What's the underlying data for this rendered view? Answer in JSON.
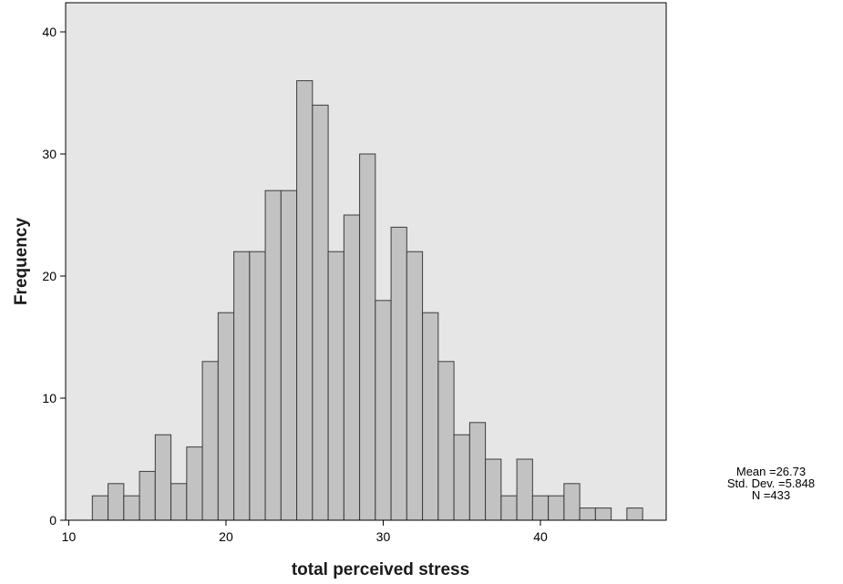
{
  "chart_data": {
    "type": "bar",
    "title": "",
    "xlabel": "total perceived stress",
    "ylabel": "Frequency",
    "xlim": [
      9.8,
      48
    ],
    "ylim": [
      0,
      40
    ],
    "grid": false,
    "x_ticks": [
      "10",
      "20",
      "30",
      "40"
    ],
    "y_ticks": [
      "0",
      "10",
      "20",
      "30",
      "40"
    ],
    "bin_width": 1,
    "bins": [
      {
        "x": 12,
        "value": 2
      },
      {
        "x": 13,
        "value": 3
      },
      {
        "x": 14,
        "value": 2
      },
      {
        "x": 15,
        "value": 4
      },
      {
        "x": 16,
        "value": 7
      },
      {
        "x": 17,
        "value": 3
      },
      {
        "x": 18,
        "value": 6
      },
      {
        "x": 19,
        "value": 13
      },
      {
        "x": 20,
        "value": 17
      },
      {
        "x": 21,
        "value": 22
      },
      {
        "x": 22,
        "value": 22
      },
      {
        "x": 23,
        "value": 27
      },
      {
        "x": 24,
        "value": 27
      },
      {
        "x": 25,
        "value": 36
      },
      {
        "x": 26,
        "value": 34
      },
      {
        "x": 27,
        "value": 22
      },
      {
        "x": 28,
        "value": 25
      },
      {
        "x": 29,
        "value": 30
      },
      {
        "x": 30,
        "value": 18
      },
      {
        "x": 31,
        "value": 24
      },
      {
        "x": 32,
        "value": 22
      },
      {
        "x": 33,
        "value": 17
      },
      {
        "x": 34,
        "value": 13
      },
      {
        "x": 35,
        "value": 7
      },
      {
        "x": 36,
        "value": 8
      },
      {
        "x": 37,
        "value": 5
      },
      {
        "x": 38,
        "value": 2
      },
      {
        "x": 39,
        "value": 5
      },
      {
        "x": 40,
        "value": 2
      },
      {
        "x": 41,
        "value": 2
      },
      {
        "x": 42,
        "value": 3
      },
      {
        "x": 43,
        "value": 1
      },
      {
        "x": 44,
        "value": 1
      },
      {
        "x": 46,
        "value": 1
      }
    ],
    "colors": {
      "plot_background": "#e6e6e6",
      "bar_fill": "#c2c2c2",
      "bar_stroke": "#3c3c3c",
      "axis": "#000000"
    },
    "stats": {
      "mean": "Mean =26.73",
      "std_dev": "Std. Dev. =5.848",
      "n": "N =433"
    }
  }
}
